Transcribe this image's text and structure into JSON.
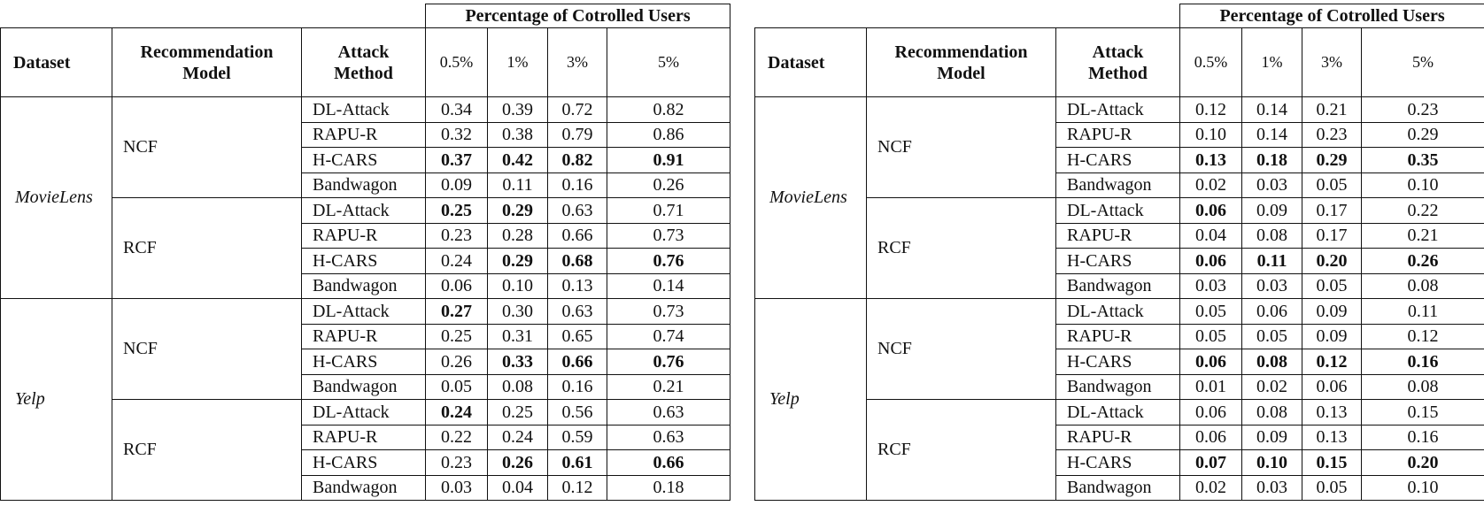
{
  "tables": [
    {
      "group_header": "Percentage of Cotrolled Users",
      "headers": {
        "dataset": "Dataset",
        "model_line1": "Recommendation",
        "model_line2": "Model",
        "method_line1": "Attack",
        "method_line2": "Method",
        "percentages": [
          "0.5%",
          "1%",
          "3%",
          "5%"
        ]
      },
      "datasets": [
        {
          "name": "MovieLens",
          "models": [
            {
              "name": "NCF",
              "rows": [
                {
                  "method": "DL-Attack",
                  "values": [
                    "0.34",
                    "0.39",
                    "0.72",
                    "0.82"
                  ],
                  "bold": [
                    false,
                    false,
                    false,
                    false
                  ]
                },
                {
                  "method": "RAPU-R",
                  "values": [
                    "0.32",
                    "0.38",
                    "0.79",
                    "0.86"
                  ],
                  "bold": [
                    false,
                    false,
                    false,
                    false
                  ]
                },
                {
                  "method": "H-CARS",
                  "values": [
                    "0.37",
                    "0.42",
                    "0.82",
                    "0.91"
                  ],
                  "bold": [
                    true,
                    true,
                    true,
                    true
                  ]
                },
                {
                  "method": "Bandwagon",
                  "values": [
                    "0.09",
                    "0.11",
                    "0.16",
                    "0.26"
                  ],
                  "bold": [
                    false,
                    false,
                    false,
                    false
                  ]
                }
              ]
            },
            {
              "name": "RCF",
              "rows": [
                {
                  "method": "DL-Attack",
                  "values": [
                    "0.25",
                    "0.29",
                    "0.63",
                    "0.71"
                  ],
                  "bold": [
                    true,
                    true,
                    false,
                    false
                  ]
                },
                {
                  "method": "RAPU-R",
                  "values": [
                    "0.23",
                    "0.28",
                    "0.66",
                    "0.73"
                  ],
                  "bold": [
                    false,
                    false,
                    false,
                    false
                  ]
                },
                {
                  "method": "H-CARS",
                  "values": [
                    "0.24",
                    "0.29",
                    "0.68",
                    "0.76"
                  ],
                  "bold": [
                    false,
                    true,
                    true,
                    true
                  ]
                },
                {
                  "method": "Bandwagon",
                  "values": [
                    "0.06",
                    "0.10",
                    "0.13",
                    "0.14"
                  ],
                  "bold": [
                    false,
                    false,
                    false,
                    false
                  ]
                }
              ]
            }
          ]
        },
        {
          "name": "Yelp",
          "models": [
            {
              "name": "NCF",
              "rows": [
                {
                  "method": "DL-Attack",
                  "values": [
                    "0.27",
                    "0.30",
                    "0.63",
                    "0.73"
                  ],
                  "bold": [
                    true,
                    false,
                    false,
                    false
                  ]
                },
                {
                  "method": "RAPU-R",
                  "values": [
                    "0.25",
                    "0.31",
                    "0.65",
                    "0.74"
                  ],
                  "bold": [
                    false,
                    false,
                    false,
                    false
                  ]
                },
                {
                  "method": "H-CARS",
                  "values": [
                    "0.26",
                    "0.33",
                    "0.66",
                    "0.76"
                  ],
                  "bold": [
                    false,
                    true,
                    true,
                    true
                  ]
                },
                {
                  "method": "Bandwagon",
                  "values": [
                    "0.05",
                    "0.08",
                    "0.16",
                    "0.21"
                  ],
                  "bold": [
                    false,
                    false,
                    false,
                    false
                  ]
                }
              ]
            },
            {
              "name": "RCF",
              "rows": [
                {
                  "method": "DL-Attack",
                  "values": [
                    "0.24",
                    "0.25",
                    "0.56",
                    "0.63"
                  ],
                  "bold": [
                    true,
                    false,
                    false,
                    false
                  ]
                },
                {
                  "method": "RAPU-R",
                  "values": [
                    "0.22",
                    "0.24",
                    "0.59",
                    "0.63"
                  ],
                  "bold": [
                    false,
                    false,
                    false,
                    false
                  ]
                },
                {
                  "method": "H-CARS",
                  "values": [
                    "0.23",
                    "0.26",
                    "0.61",
                    "0.66"
                  ],
                  "bold": [
                    false,
                    true,
                    true,
                    true
                  ]
                },
                {
                  "method": "Bandwagon",
                  "values": [
                    "0.03",
                    "0.04",
                    "0.12",
                    "0.18"
                  ],
                  "bold": [
                    false,
                    false,
                    false,
                    false
                  ]
                }
              ]
            }
          ]
        }
      ]
    },
    {
      "group_header": "Percentage of Cotrolled Users",
      "headers": {
        "dataset": "Dataset",
        "model_line1": "Recommendation",
        "model_line2": "Model",
        "method_line1": "Attack",
        "method_line2": "Method",
        "percentages": [
          "0.5%",
          "1%",
          "3%",
          "5%"
        ]
      },
      "datasets": [
        {
          "name": "MovieLens",
          "models": [
            {
              "name": "NCF",
              "rows": [
                {
                  "method": "DL-Attack",
                  "values": [
                    "0.12",
                    "0.14",
                    "0.21",
                    "0.23"
                  ],
                  "bold": [
                    false,
                    false,
                    false,
                    false
                  ]
                },
                {
                  "method": "RAPU-R",
                  "values": [
                    "0.10",
                    "0.14",
                    "0.23",
                    "0.29"
                  ],
                  "bold": [
                    false,
                    false,
                    false,
                    false
                  ]
                },
                {
                  "method": "H-CARS",
                  "values": [
                    "0.13",
                    "0.18",
                    "0.29",
                    "0.35"
                  ],
                  "bold": [
                    true,
                    true,
                    true,
                    true
                  ]
                },
                {
                  "method": "Bandwagon",
                  "values": [
                    "0.02",
                    "0.03",
                    "0.05",
                    "0.10"
                  ],
                  "bold": [
                    false,
                    false,
                    false,
                    false
                  ]
                }
              ]
            },
            {
              "name": "RCF",
              "rows": [
                {
                  "method": "DL-Attack",
                  "values": [
                    "0.06",
                    "0.09",
                    "0.17",
                    "0.22"
                  ],
                  "bold": [
                    true,
                    false,
                    false,
                    false
                  ]
                },
                {
                  "method": "RAPU-R",
                  "values": [
                    "0.04",
                    "0.08",
                    "0.17",
                    "0.21"
                  ],
                  "bold": [
                    false,
                    false,
                    false,
                    false
                  ]
                },
                {
                  "method": "H-CARS",
                  "values": [
                    "0.06",
                    "0.11",
                    "0.20",
                    "0.26"
                  ],
                  "bold": [
                    true,
                    true,
                    true,
                    true
                  ]
                },
                {
                  "method": "Bandwagon",
                  "values": [
                    "0.03",
                    "0.03",
                    "0.05",
                    "0.08"
                  ],
                  "bold": [
                    false,
                    false,
                    false,
                    false
                  ]
                }
              ]
            }
          ]
        },
        {
          "name": "Yelp",
          "models": [
            {
              "name": "NCF",
              "rows": [
                {
                  "method": "DL-Attack",
                  "values": [
                    "0.05",
                    "0.06",
                    "0.09",
                    "0.11"
                  ],
                  "bold": [
                    false,
                    false,
                    false,
                    false
                  ]
                },
                {
                  "method": "RAPU-R",
                  "values": [
                    "0.05",
                    "0.05",
                    "0.09",
                    "0.12"
                  ],
                  "bold": [
                    false,
                    false,
                    false,
                    false
                  ]
                },
                {
                  "method": "H-CARS",
                  "values": [
                    "0.06",
                    "0.08",
                    "0.12",
                    "0.16"
                  ],
                  "bold": [
                    true,
                    true,
                    true,
                    true
                  ]
                },
                {
                  "method": "Bandwagon",
                  "values": [
                    "0.01",
                    "0.02",
                    "0.06",
                    "0.08"
                  ],
                  "bold": [
                    false,
                    false,
                    false,
                    false
                  ]
                }
              ]
            },
            {
              "name": "RCF",
              "rows": [
                {
                  "method": "DL-Attack",
                  "values": [
                    "0.06",
                    "0.08",
                    "0.13",
                    "0.15"
                  ],
                  "bold": [
                    false,
                    false,
                    false,
                    false
                  ]
                },
                {
                  "method": "RAPU-R",
                  "values": [
                    "0.06",
                    "0.09",
                    "0.13",
                    "0.16"
                  ],
                  "bold": [
                    false,
                    false,
                    false,
                    false
                  ]
                },
                {
                  "method": "H-CARS",
                  "values": [
                    "0.07",
                    "0.10",
                    "0.15",
                    "0.20"
                  ],
                  "bold": [
                    true,
                    true,
                    true,
                    true
                  ]
                },
                {
                  "method": "Bandwagon",
                  "values": [
                    "0.02",
                    "0.03",
                    "0.05",
                    "0.10"
                  ],
                  "bold": [
                    false,
                    false,
                    false,
                    false
                  ]
                }
              ]
            }
          ]
        }
      ]
    }
  ]
}
